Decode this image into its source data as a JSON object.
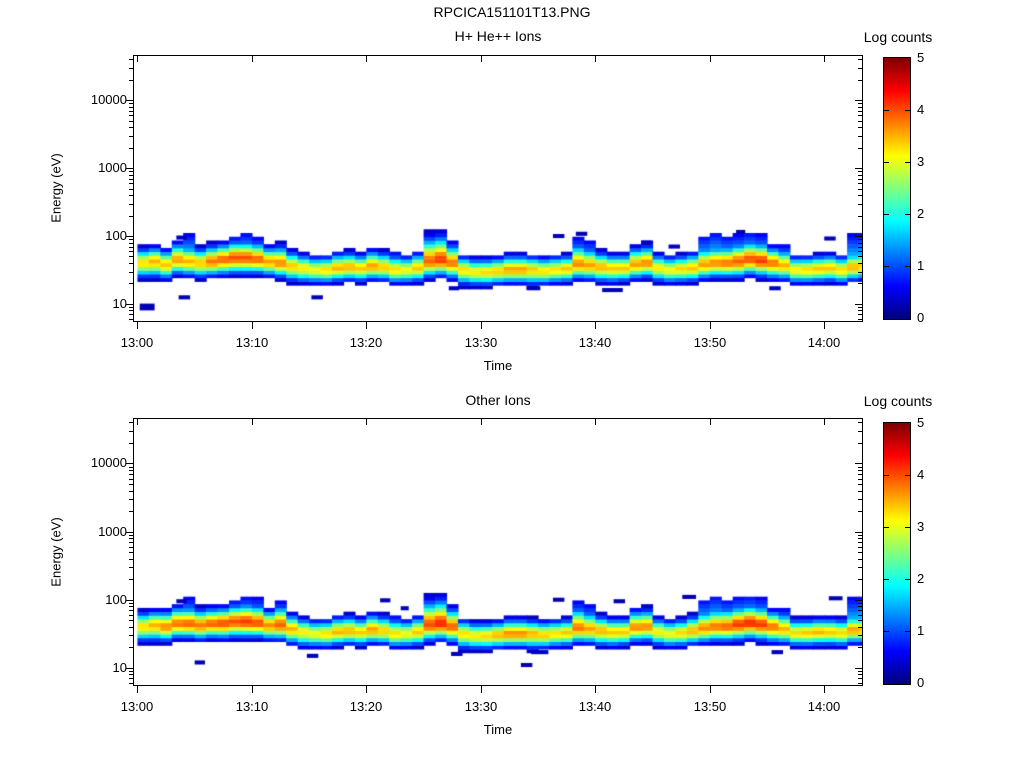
{
  "figure_title": "RPCICA151101T13.PNG",
  "colors": {
    "background": "#ffffff",
    "axis": "#000000",
    "text": "#000000"
  },
  "time_axis": {
    "label": "Time",
    "tick_labels": [
      "13:00",
      "13:10",
      "13:20",
      "13:30",
      "13:40",
      "13:50",
      "14:00"
    ],
    "tick_minutes": [
      0,
      10,
      20,
      30,
      40,
      50,
      60
    ]
  },
  "energy_axis": {
    "label": "Energy (eV)",
    "tick_values": [
      10,
      100,
      1000,
      10000
    ],
    "tick_labels": [
      "10",
      "100",
      "1000",
      "10000"
    ]
  },
  "colorbar": {
    "label": "Log counts",
    "tick_values": [
      0,
      1,
      2,
      3,
      4,
      5
    ],
    "min": 0,
    "max": 5,
    "colormap": "jet"
  },
  "chart_data": [
    {
      "type": "heatmap",
      "title": "H+ He++ Ions",
      "xlabel": "Time",
      "ylabel": "Energy (eV)",
      "value_label": "Log counts",
      "value_range": [
        0,
        5
      ],
      "time_range_minutes": [
        -0.3,
        63.3
      ],
      "time_origin": "13:00",
      "energy_range_ev": [
        5.6,
        45000
      ],
      "bin_format": "per 1-minute bin starting at 13:00: [band_center_ev, peak_log_counts, sigma_up_decades, sigma_down_decades, cap_top_ev(0=none)]",
      "bins": [
        [
          38,
          3.3,
          0.12,
          0.12,
          0
        ],
        [
          40,
          3.5,
          0.12,
          0.13,
          0
        ],
        [
          36,
          3.4,
          0.12,
          0.12,
          0
        ],
        [
          42,
          3.6,
          0.14,
          0.12,
          70
        ],
        [
          40,
          3.5,
          0.13,
          0.12,
          100
        ],
        [
          38,
          3.4,
          0.12,
          0.12,
          0
        ],
        [
          40,
          3.8,
          0.13,
          0.12,
          0
        ],
        [
          43,
          3.9,
          0.13,
          0.13,
          0
        ],
        [
          45,
          4.0,
          0.14,
          0.13,
          95
        ],
        [
          45,
          4.0,
          0.14,
          0.13,
          105
        ],
        [
          43,
          3.9,
          0.14,
          0.12,
          90
        ],
        [
          40,
          3.6,
          0.12,
          0.12,
          0
        ],
        [
          38,
          3.7,
          0.14,
          0.12,
          75
        ],
        [
          34,
          3.4,
          0.12,
          0.12,
          0
        ],
        [
          32,
          3.2,
          0.11,
          0.12,
          0
        ],
        [
          30,
          3.1,
          0.11,
          0.11,
          0
        ],
        [
          30,
          3.3,
          0.11,
          0.11,
          0
        ],
        [
          32,
          3.5,
          0.12,
          0.11,
          0
        ],
        [
          33,
          3.5,
          0.12,
          0.11,
          0
        ],
        [
          32,
          3.4,
          0.11,
          0.11,
          0
        ],
        [
          34,
          3.6,
          0.13,
          0.11,
          60
        ],
        [
          33,
          3.4,
          0.12,
          0.11,
          0
        ],
        [
          30,
          3.3,
          0.12,
          0.11,
          55
        ],
        [
          30,
          3.1,
          0.11,
          0.11,
          0
        ],
        [
          32,
          3.4,
          0.12,
          0.11,
          0
        ],
        [
          40,
          3.9,
          0.2,
          0.13,
          100
        ],
        [
          42,
          4.1,
          0.2,
          0.13,
          105
        ],
        [
          38,
          3.8,
          0.15,
          0.13,
          70
        ],
        [
          30,
          3.3,
          0.11,
          0.12,
          0
        ],
        [
          28,
          3.2,
          0.11,
          0.11,
          0
        ],
        [
          28,
          3.3,
          0.11,
          0.11,
          0
        ],
        [
          29,
          3.4,
          0.11,
          0.11,
          0
        ],
        [
          30,
          3.6,
          0.12,
          0.11,
          0
        ],
        [
          30,
          3.6,
          0.12,
          0.11,
          0
        ],
        [
          30,
          3.4,
          0.11,
          0.12,
          0
        ],
        [
          29,
          3.3,
          0.11,
          0.11,
          0
        ],
        [
          30,
          3.3,
          0.11,
          0.11,
          0
        ],
        [
          31,
          3.4,
          0.11,
          0.11,
          0
        ],
        [
          36,
          3.7,
          0.17,
          0.12,
          90
        ],
        [
          35,
          3.6,
          0.14,
          0.12,
          80
        ],
        [
          33,
          3.5,
          0.12,
          0.12,
          0
        ],
        [
          32,
          3.4,
          0.11,
          0.12,
          0
        ],
        [
          32,
          3.4,
          0.11,
          0.11,
          0
        ],
        [
          36,
          3.6,
          0.14,
          0.12,
          0
        ],
        [
          38,
          3.7,
          0.14,
          0.12,
          75
        ],
        [
          32,
          3.2,
          0.11,
          0.11,
          0
        ],
        [
          30,
          3.1,
          0.11,
          0.11,
          0
        ],
        [
          31,
          3.3,
          0.11,
          0.11,
          0
        ],
        [
          32,
          3.4,
          0.12,
          0.11,
          0
        ],
        [
          36,
          3.6,
          0.14,
          0.12,
          95
        ],
        [
          38,
          3.7,
          0.14,
          0.12,
          110
        ],
        [
          38,
          3.8,
          0.14,
          0.12,
          95
        ],
        [
          40,
          3.9,
          0.15,
          0.13,
          100
        ],
        [
          43,
          4.0,
          0.15,
          0.13,
          110
        ],
        [
          41,
          4.1,
          0.15,
          0.13,
          100
        ],
        [
          38,
          3.8,
          0.13,
          0.13,
          0
        ],
        [
          35,
          3.5,
          0.13,
          0.12,
          70
        ],
        [
          30,
          3.2,
          0.11,
          0.11,
          0
        ],
        [
          30,
          3.3,
          0.11,
          0.11,
          0
        ],
        [
          31,
          3.4,
          0.11,
          0.11,
          0
        ],
        [
          32,
          3.4,
          0.11,
          0.11,
          0
        ],
        [
          30,
          3.3,
          0.11,
          0.11,
          0
        ],
        [
          33,
          3.5,
          0.12,
          0.11,
          100
        ],
        [
          34,
          3.4,
          0.12,
          0.11,
          105
        ]
      ],
      "spot_format": "isolated patches: [t_min_after_13:00, width_min, energy_ev, log_counts, height_decades]",
      "spots": [
        [
          0.2,
          1.3,
          9,
          0.25,
          0.1
        ],
        [
          3.6,
          1.0,
          12.5,
          0.25,
          0.06
        ],
        [
          15.2,
          1.0,
          12.5,
          0.25,
          0.06
        ],
        [
          3.4,
          0.9,
          95,
          0.3,
          0.06
        ],
        [
          36.3,
          1.0,
          100,
          0.25,
          0.06
        ],
        [
          38.3,
          1.0,
          108,
          0.25,
          0.06
        ],
        [
          44.0,
          0.9,
          80,
          0.3,
          0.06
        ],
        [
          46.4,
          1.0,
          70,
          0.3,
          0.06
        ],
        [
          52.3,
          0.8,
          115,
          0.25,
          0.06
        ],
        [
          60.0,
          1.0,
          92,
          0.3,
          0.06
        ],
        [
          27.2,
          0.9,
          17,
          0.3,
          0.06
        ],
        [
          34.0,
          1.2,
          17,
          0.3,
          0.06
        ],
        [
          40.6,
          1.8,
          16,
          0.3,
          0.06
        ],
        [
          55.2,
          1.0,
          17,
          0.3,
          0.06
        ]
      ]
    },
    {
      "type": "heatmap",
      "title": "Other Ions",
      "xlabel": "Time",
      "ylabel": "Energy (eV)",
      "value_label": "Log counts",
      "value_range": [
        0,
        5
      ],
      "time_range_minutes": [
        -0.3,
        63.3
      ],
      "time_origin": "13:00",
      "energy_range_ev": [
        5.6,
        45000
      ],
      "bin_format": "per 1-minute bin starting at 13:00: [band_center_ev, peak_log_counts, sigma_up_decades, sigma_down_decades, cap_top_ev(0=none)]",
      "bins": [
        [
          38,
          3.3,
          0.12,
          0.12,
          0
        ],
        [
          40,
          3.5,
          0.12,
          0.13,
          0
        ],
        [
          38,
          3.7,
          0.13,
          0.12,
          0
        ],
        [
          42,
          3.8,
          0.14,
          0.12,
          80
        ],
        [
          42,
          3.9,
          0.14,
          0.12,
          100
        ],
        [
          40,
          3.8,
          0.13,
          0.12,
          0
        ],
        [
          42,
          3.9,
          0.13,
          0.12,
          0
        ],
        [
          43,
          4.0,
          0.13,
          0.13,
          0
        ],
        [
          45,
          4.0,
          0.14,
          0.13,
          95
        ],
        [
          45,
          4.1,
          0.15,
          0.13,
          105
        ],
        [
          43,
          4.0,
          0.15,
          0.12,
          100
        ],
        [
          40,
          3.7,
          0.12,
          0.12,
          0
        ],
        [
          40,
          3.9,
          0.16,
          0.12,
          90
        ],
        [
          35,
          3.5,
          0.12,
          0.12,
          0
        ],
        [
          32,
          3.2,
          0.11,
          0.12,
          0
        ],
        [
          30,
          3.1,
          0.11,
          0.11,
          0
        ],
        [
          30,
          3.3,
          0.11,
          0.11,
          0
        ],
        [
          32,
          3.5,
          0.12,
          0.11,
          0
        ],
        [
          33,
          3.5,
          0.12,
          0.11,
          0
        ],
        [
          32,
          3.4,
          0.11,
          0.11,
          0
        ],
        [
          34,
          3.6,
          0.13,
          0.11,
          60
        ],
        [
          33,
          3.4,
          0.12,
          0.11,
          0
        ],
        [
          30,
          3.3,
          0.12,
          0.11,
          55
        ],
        [
          30,
          3.1,
          0.11,
          0.11,
          0
        ],
        [
          32,
          3.4,
          0.12,
          0.11,
          0
        ],
        [
          40,
          4.0,
          0.2,
          0.13,
          100
        ],
        [
          42,
          4.2,
          0.2,
          0.13,
          105
        ],
        [
          38,
          3.9,
          0.15,
          0.13,
          70
        ],
        [
          30,
          3.3,
          0.11,
          0.12,
          0
        ],
        [
          28,
          3.2,
          0.11,
          0.11,
          0
        ],
        [
          28,
          3.3,
          0.11,
          0.11,
          0
        ],
        [
          29,
          3.5,
          0.11,
          0.11,
          0
        ],
        [
          30,
          3.7,
          0.12,
          0.11,
          0
        ],
        [
          30,
          3.7,
          0.12,
          0.11,
          0
        ],
        [
          30,
          3.5,
          0.11,
          0.12,
          0
        ],
        [
          29,
          3.4,
          0.11,
          0.11,
          0
        ],
        [
          30,
          3.3,
          0.11,
          0.11,
          0
        ],
        [
          31,
          3.4,
          0.11,
          0.11,
          0
        ],
        [
          36,
          3.8,
          0.17,
          0.12,
          90
        ],
        [
          35,
          3.6,
          0.14,
          0.12,
          80
        ],
        [
          33,
          3.5,
          0.12,
          0.12,
          0
        ],
        [
          32,
          3.4,
          0.11,
          0.12,
          0
        ],
        [
          32,
          3.4,
          0.11,
          0.11,
          0
        ],
        [
          37,
          3.7,
          0.14,
          0.12,
          0
        ],
        [
          38,
          3.7,
          0.14,
          0.12,
          75
        ],
        [
          32,
          3.2,
          0.11,
          0.11,
          0
        ],
        [
          30,
          3.1,
          0.11,
          0.11,
          0
        ],
        [
          31,
          3.3,
          0.11,
          0.11,
          0
        ],
        [
          33,
          3.5,
          0.12,
          0.11,
          0
        ],
        [
          36,
          3.7,
          0.14,
          0.12,
          95
        ],
        [
          38,
          3.8,
          0.15,
          0.12,
          110
        ],
        [
          38,
          3.9,
          0.15,
          0.12,
          95
        ],
        [
          41,
          4.1,
          0.15,
          0.13,
          105
        ],
        [
          43,
          4.2,
          0.15,
          0.13,
          110
        ],
        [
          41,
          4.1,
          0.15,
          0.13,
          100
        ],
        [
          38,
          3.8,
          0.13,
          0.13,
          0
        ],
        [
          35,
          3.5,
          0.13,
          0.12,
          70
        ],
        [
          31,
          3.3,
          0.11,
          0.11,
          0
        ],
        [
          31,
          3.4,
          0.11,
          0.11,
          0
        ],
        [
          32,
          3.5,
          0.11,
          0.11,
          0
        ],
        [
          32,
          3.4,
          0.11,
          0.11,
          0
        ],
        [
          31,
          3.3,
          0.11,
          0.11,
          0
        ],
        [
          34,
          3.6,
          0.12,
          0.11,
          100
        ],
        [
          34,
          3.5,
          0.12,
          0.11,
          110
        ]
      ],
      "spot_format": "isolated patches: [t_min_after_13:00, width_min, energy_ev, log_counts, height_decades]",
      "spots": [
        [
          3.4,
          0.9,
          95,
          0.3,
          0.06
        ],
        [
          5.0,
          0.9,
          12,
          0.25,
          0.06
        ],
        [
          14.8,
          1.0,
          15,
          0.25,
          0.06
        ],
        [
          21.2,
          0.9,
          98,
          0.25,
          0.06
        ],
        [
          23.0,
          0.7,
          75,
          0.3,
          0.06
        ],
        [
          33.5,
          1.0,
          11,
          0.25,
          0.06
        ],
        [
          36.3,
          1.0,
          100,
          0.25,
          0.06
        ],
        [
          41.6,
          1.0,
          95,
          0.25,
          0.06
        ],
        [
          47.6,
          1.2,
          110,
          0.25,
          0.06
        ],
        [
          60.4,
          1.2,
          105,
          0.25,
          0.06
        ],
        [
          27.4,
          1.0,
          16,
          0.3,
          0.06
        ],
        [
          34.4,
          1.5,
          17,
          0.3,
          0.06
        ],
        [
          55.4,
          1.0,
          17,
          0.3,
          0.06
        ]
      ]
    }
  ]
}
